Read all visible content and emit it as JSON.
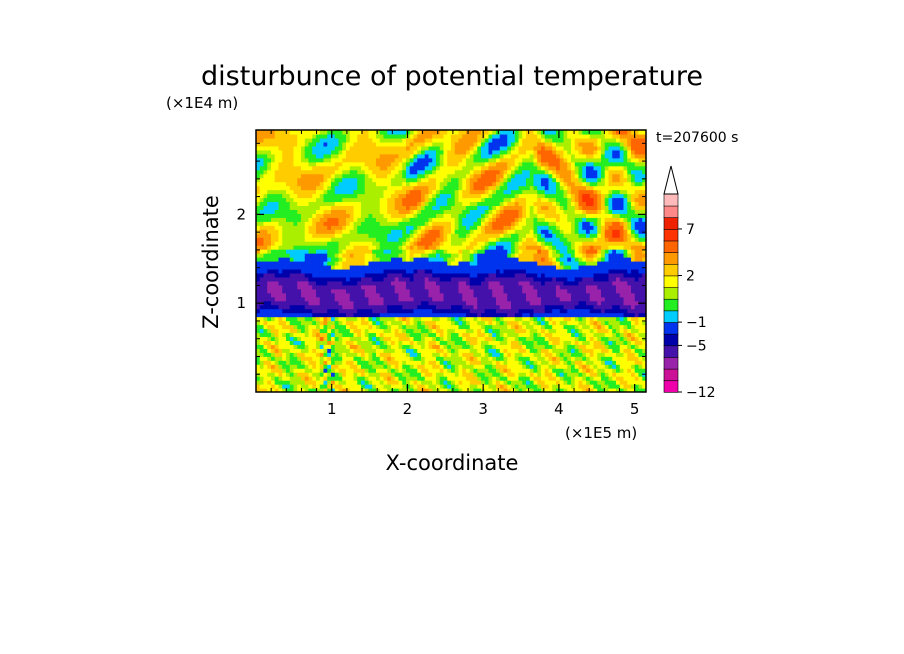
{
  "chart_data": {
    "type": "heatmap",
    "title": "disturbunce of potential temperature",
    "xlabel": "X-coordinate",
    "ylabel": "Z-coordinate",
    "x_unit": "(×1E5 m)",
    "y_unit": "(×1E4 m)",
    "time_label": "t=207600 s",
    "xlim": [
      0,
      5.15
    ],
    "ylim": [
      0,
      2.95
    ],
    "xticks": [
      "1",
      "2",
      "3",
      "4",
      "5"
    ],
    "yticks": [
      "1",
      "2"
    ],
    "x_tick_values": [
      1,
      2,
      3,
      4,
      5
    ],
    "y_tick_values": [
      1,
      2
    ],
    "colorbar": {
      "colors": [
        "#ee00aa",
        "#cc1199",
        "#9922aa",
        "#4411aa",
        "#0000aa",
        "#0033ee",
        "#00ccff",
        "#22ee22",
        "#aaee00",
        "#ffff00",
        "#ffcc00",
        "#ff9900",
        "#ff6600",
        "#ff3300",
        "#ee2200",
        "#ff8888",
        "#ffbbbb"
      ],
      "ticks": [
        {
          "label": "7",
          "level": 7
        },
        {
          "label": "2",
          "level": 2
        },
        {
          "label": "−1",
          "level": -1
        },
        {
          "label": "−5",
          "level": -5
        },
        {
          "label": "−12",
          "level": -12
        }
      ],
      "extend": "max"
    },
    "features": [
      {
        "desc": "strong negative band",
        "z_range": [
          0.85,
          1.35
        ],
        "value": -5
      },
      {
        "desc": "lower mixed field",
        "z_range": [
          0,
          0.85
        ],
        "value": 1
      },
      {
        "desc": "upper gravity wave pattern",
        "z_range": [
          1.35,
          2.95
        ],
        "value": 3
      }
    ]
  }
}
